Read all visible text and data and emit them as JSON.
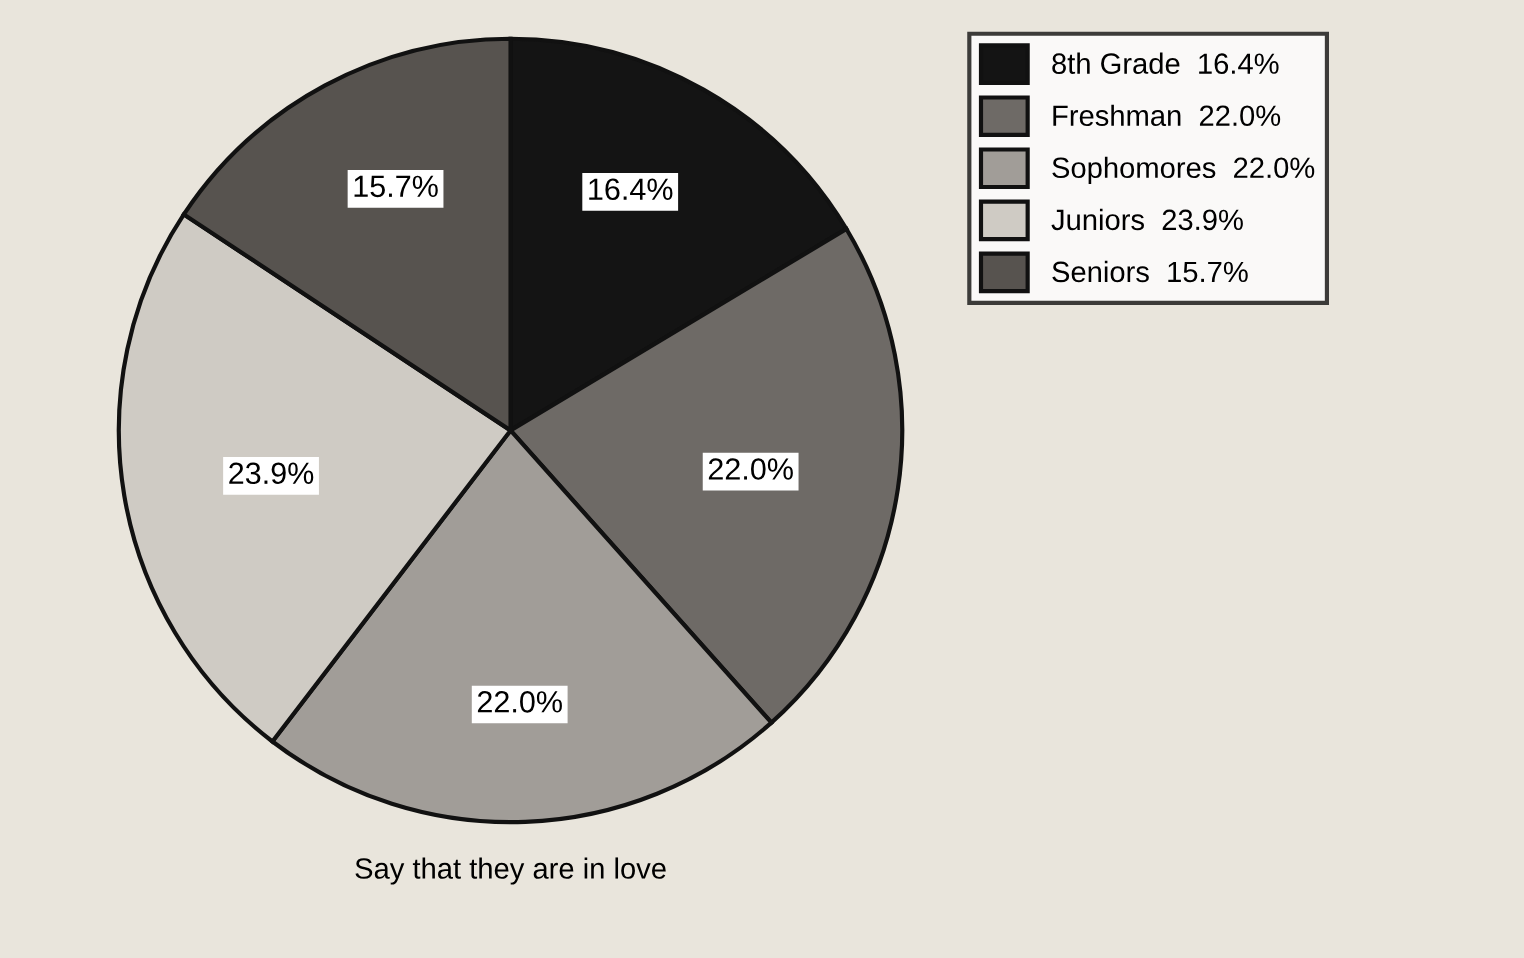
{
  "chart_data": {
    "type": "pie",
    "title": "Say that they are in love",
    "categories": [
      "8th Grade  16.4%",
      "Freshman  22.0%",
      "Sophomores  22.0%",
      "Juniors  23.9%",
      "Seniors  15.7%"
    ],
    "value_labels": [
      "16.4%",
      "22.0%",
      "22.0%",
      "23.9%",
      "15.7%"
    ],
    "values": [
      16.4,
      22.0,
      22.0,
      23.9,
      15.7
    ],
    "colors": [
      "#141414",
      "#6e6a66",
      "#a19d98",
      "#cfcbc4",
      "#57534f"
    ],
    "legend": "top right"
  }
}
